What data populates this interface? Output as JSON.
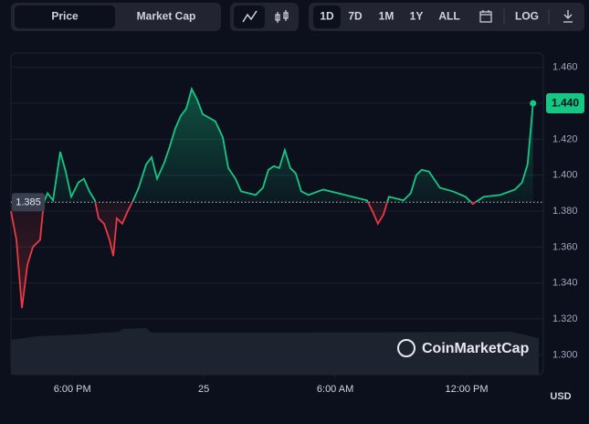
{
  "toolbar": {
    "tabs": [
      "Price",
      "Market Cap"
    ],
    "ranges": [
      "1D",
      "7D",
      "1M",
      "1Y",
      "ALL"
    ],
    "log": "LOG"
  },
  "chart_data": {
    "type": "line",
    "watermark": "CoinMarketCap",
    "currency": "USD",
    "x": [
      15.2,
      15.45,
      15.7,
      15.95,
      16.2,
      16.53,
      16.7,
      16.87,
      17.12,
      17.45,
      17.7,
      17.95,
      18.28,
      18.53,
      18.78,
      19.03,
      19.2,
      19.45,
      19.7,
      19.87,
      20.03,
      20.28,
      20.53,
      20.78,
      21.03,
      21.37,
      21.62,
      21.87,
      22.2,
      22.45,
      22.7,
      22.95,
      23.2,
      23.45,
      23.7,
      23.95,
      24.53,
      24.87,
      25.12,
      25.45,
      25.7,
      26.37,
      26.7,
      26.95,
      27.2,
      27.45,
      27.7,
      27.95,
      28.2,
      28.45,
      28.78,
      29.45,
      30.12,
      30.78,
      31.45,
      31.7,
      31.95,
      32.2,
      32.45,
      33.12,
      33.45,
      33.7,
      33.95,
      34.28,
      34.78,
      35.37,
      35.95,
      36.28,
      36.78,
      37.53,
      38.2,
      38.53,
      38.78,
      39.03
    ],
    "series": [
      {
        "name": "Price",
        "up_color": "#16c784",
        "down_color": "#ea3943",
        "values": [
          1.38,
          1.364,
          1.326,
          1.35,
          1.36,
          1.364,
          1.385,
          1.39,
          1.386,
          1.413,
          1.402,
          1.388,
          1.396,
          1.398,
          1.391,
          1.386,
          1.376,
          1.373,
          1.364,
          1.355,
          1.376,
          1.373,
          1.38,
          1.386,
          1.393,
          1.406,
          1.41,
          1.398,
          1.407,
          1.416,
          1.426,
          1.433,
          1.437,
          1.448,
          1.442,
          1.434,
          1.43,
          1.421,
          1.404,
          1.398,
          1.391,
          1.389,
          1.393,
          1.403,
          1.405,
          1.404,
          1.414,
          1.404,
          1.401,
          1.391,
          1.389,
          1.392,
          1.39,
          1.388,
          1.386,
          1.38,
          1.373,
          1.378,
          1.388,
          1.386,
          1.39,
          1.4,
          1.403,
          1.402,
          1.393,
          1.391,
          1.388,
          1.384,
          1.388,
          1.389,
          1.392,
          1.396,
          1.406,
          1.44
        ]
      }
    ],
    "reference_line": 1.385,
    "last_value_label": "1.440",
    "xlim": [
      15.2,
      39.5
    ],
    "ylim": [
      1.289,
      1.468
    ],
    "xticks": [
      {
        "value": 18,
        "label": "6:00 PM"
      },
      {
        "value": 24,
        "label": "25"
      },
      {
        "value": 30,
        "label": "6:00 AM"
      },
      {
        "value": 36,
        "label": "12:00 PM"
      }
    ],
    "yticks": [
      {
        "value": 1.3,
        "label": "1.300"
      },
      {
        "value": 1.32,
        "label": "1.320"
      },
      {
        "value": 1.34,
        "label": "1.340"
      },
      {
        "value": 1.36,
        "label": "1.360"
      },
      {
        "value": 1.38,
        "label": "1.380"
      },
      {
        "value": 1.4,
        "label": "1.400"
      },
      {
        "value": 1.42,
        "label": "1.420"
      },
      {
        "value": 1.44,
        "label": "1.440"
      },
      {
        "value": 1.46,
        "label": "1.460"
      }
    ],
    "grid": true
  }
}
